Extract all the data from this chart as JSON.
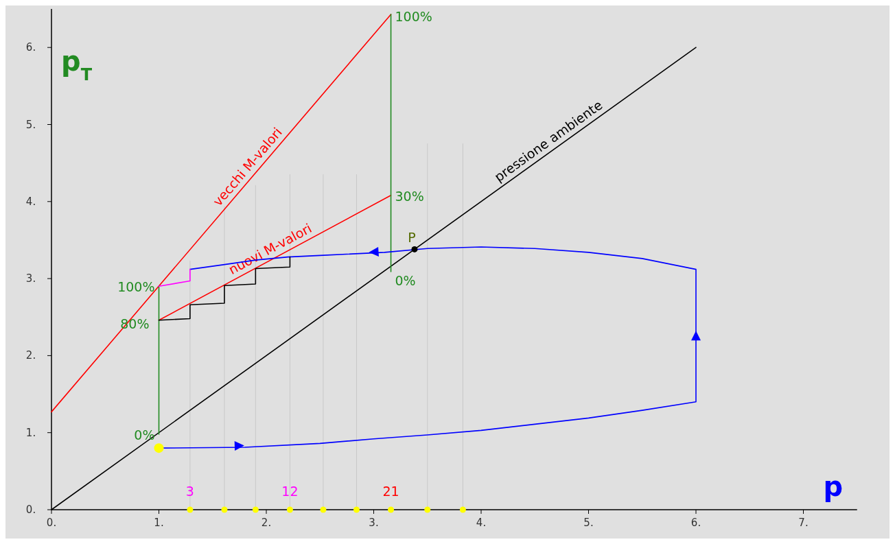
{
  "chart_data": {
    "type": "line",
    "xlabel": "p",
    "ylabel": "p$_{T}$",
    "xlim": [
      0,
      7.5
    ],
    "ylim": [
      0,
      6.5
    ],
    "xticks": [
      {
        "value": 0,
        "label": "0."
      },
      {
        "value": 1,
        "label": "1."
      },
      {
        "value": 2,
        "label": "2."
      },
      {
        "value": 3,
        "label": "3."
      },
      {
        "value": 4,
        "label": "4."
      },
      {
        "value": 5,
        "label": "5."
      },
      {
        "value": 6,
        "label": "6."
      },
      {
        "value": 7,
        "label": "7."
      }
    ],
    "yticks": [
      {
        "value": 0,
        "label": "0."
      },
      {
        "value": 1,
        "label": "1."
      },
      {
        "value": 2,
        "label": "2."
      },
      {
        "value": 3,
        "label": "3."
      },
      {
        "value": 4,
        "label": "4."
      },
      {
        "value": 5,
        "label": "5."
      },
      {
        "value": 6,
        "label": "6."
      }
    ],
    "grid": false,
    "series": [
      {
        "color": "#c8c8c8",
        "x": [
          1.29,
          1.29
        ],
        "values": [
          0,
          3.23
        ]
      },
      {
        "color": "#c8c8c8",
        "x": [
          1.61,
          1.61
        ],
        "values": [
          0,
          3.94
        ]
      },
      {
        "color": "#c8c8c8",
        "x": [
          1.9,
          1.9
        ],
        "values": [
          0,
          4.21
        ]
      },
      {
        "color": "#c8c8c8",
        "x": [
          2.22,
          2.22
        ],
        "values": [
          0,
          4.35
        ]
      },
      {
        "color": "#c8c8c8",
        "x": [
          2.53,
          2.53
        ],
        "values": [
          0,
          4.35
        ]
      },
      {
        "color": "#c8c8c8",
        "x": [
          2.84,
          2.84
        ],
        "values": [
          0,
          4.35
        ]
      },
      {
        "color": "#c8c8c8",
        "x": [
          3.5,
          3.5
        ],
        "values": [
          0,
          4.75
        ]
      },
      {
        "color": "#c8c8c8",
        "x": [
          3.83,
          3.83
        ],
        "values": [
          0,
          4.75
        ]
      },
      {
        "name": "pressione ambiente",
        "color": "#000000",
        "x": [
          0,
          6
        ],
        "values": [
          0,
          6
        ]
      },
      {
        "name": "vecchi M-valori",
        "color": "#ff0000",
        "x": [
          0,
          3.16
        ],
        "values": [
          1.27,
          6.43
        ]
      },
      {
        "name": "nuovi M-valori",
        "color": "#ff0000",
        "x": [
          1,
          3.16
        ],
        "values": [
          2.46,
          4.08
        ]
      },
      {
        "color": "#228b22",
        "x": [
          1,
          1
        ],
        "values": [
          0.98,
          2.9
        ]
      },
      {
        "color": "#228b22",
        "x": [
          3.16,
          3.16
        ],
        "values": [
          3.09,
          6.43
        ]
      },
      {
        "color": "#0000ff",
        "x": [
          1,
          1.8,
          2.5,
          3,
          3.5,
          4,
          4.5,
          5,
          5.5,
          6,
          6,
          5.5,
          5,
          4.5,
          4,
          3.5,
          3.1,
          2.5,
          2.2,
          1.9,
          1.6,
          1.29
        ],
        "values": [
          0.8,
          0.81,
          0.86,
          0.92,
          0.97,
          1.03,
          1.11,
          1.19,
          1.29,
          1.4,
          3.12,
          3.26,
          3.34,
          3.39,
          3.41,
          3.39,
          3.34,
          3.3,
          3.28,
          3.24,
          3.18,
          3.12
        ]
      },
      {
        "color": "#ff00ff",
        "x": [
          1,
          1.29,
          1.29
        ],
        "values": [
          2.9,
          2.97,
          3.12
        ]
      },
      {
        "color": "#000000",
        "x": [
          1,
          1.29,
          1.29,
          1.61,
          1.61,
          1.9,
          1.9,
          2.22,
          2.22
        ],
        "values": [
          2.46,
          2.48,
          2.66,
          2.68,
          2.91,
          2.93,
          3.13,
          3.15,
          3.28
        ]
      },
      {
        "type": "scatter",
        "marker": "circle",
        "color": "#ffff00",
        "x": [
          1.29,
          1.61,
          1.9,
          2.22,
          2.53,
          2.84,
          3.16,
          3.5,
          3.83
        ],
        "values": [
          0,
          0,
          0,
          0,
          0,
          0,
          0,
          0,
          0
        ]
      },
      {
        "type": "scatter",
        "marker": "circle",
        "color": "#ffff00",
        "x": [
          1
        ],
        "values": [
          0.8
        ]
      },
      {
        "type": "scatter",
        "marker": "circle",
        "color": "#000000",
        "x": [
          3.38
        ],
        "values": [
          3.38
        ]
      }
    ],
    "annotations": [
      {
        "text": "0%",
        "x": 1,
        "y": 0.98
      },
      {
        "text": "80%",
        "x": 1,
        "y": 2.46
      },
      {
        "text": "100%",
        "x": 1,
        "y": 2.9
      },
      {
        "text": "0%",
        "x": 3.16,
        "y": 3.09
      },
      {
        "text": "30%",
        "x": 3.16,
        "y": 4.08
      },
      {
        "text": "100%",
        "x": 3.16,
        "y": 6.43
      },
      {
        "text": "P",
        "x": 3.38,
        "y": 3.38
      },
      {
        "text": "3",
        "x": 1.29,
        "y": 0
      },
      {
        "text": "12",
        "x": 2.22,
        "y": 0
      },
      {
        "text": "21",
        "x": 3.16,
        "y": 0
      }
    ]
  }
}
